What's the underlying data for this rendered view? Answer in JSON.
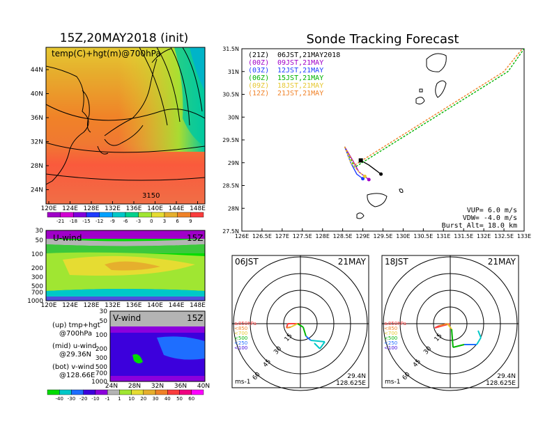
{
  "left_title": "15Z,20MAY2018 (init)",
  "right_title": "Sonde Tracking Forecast",
  "top_map": {
    "label": "temp(C)+hgt(m)@700hPa",
    "contour_label": "3150",
    "lat_ticks": [
      "44N",
      "40N",
      "36N",
      "32N",
      "28N",
      "24N"
    ],
    "lon_ticks": [
      "120E",
      "124E",
      "128E",
      "132E",
      "136E",
      "140E",
      "144E",
      "148E"
    ],
    "colorbar_labels": [
      "-21",
      "-18",
      "-15",
      "-12",
      "-9",
      "-6",
      "-3",
      "0",
      "3",
      "6",
      "9"
    ],
    "colorbar_colors": [
      "#a000c8",
      "#d200d2",
      "#8200dc",
      "#1e3cff",
      "#00a0ff",
      "#00c8c8",
      "#00d28c",
      "#a0e632",
      "#e6dc32",
      "#e6af2d",
      "#f08228",
      "#fa3c3c"
    ]
  },
  "uwind": {
    "label": "U-wind",
    "time": "15Z",
    "p_ticks": [
      "30",
      "50",
      "100",
      "200",
      "300",
      "500",
      "700",
      "1000"
    ],
    "lon_ticks": [
      "120E",
      "124E",
      "128E",
      "132E",
      "136E",
      "140E",
      "144E",
      "148E"
    ]
  },
  "vwind": {
    "label": "V-wind",
    "time": "15Z",
    "p_ticks": [
      "30",
      "50",
      "100",
      "200",
      "300",
      "500",
      "700",
      "1000"
    ],
    "lat_ticks": [
      "24N",
      "28N",
      "32N",
      "36N",
      "40N"
    ],
    "colorbar_labels": [
      "-40",
      "-30",
      "-20",
      "-10",
      "-1",
      "1",
      "10",
      "20",
      "30",
      "40",
      "50",
      "60"
    ],
    "colorbar_colors": [
      "#00dc00",
      "#00c8c8",
      "#1e6eff",
      "#3c00dc",
      "#8c00dc",
      "#b4b4b4",
      "#a0e632",
      "#e6dc32",
      "#e6af2d",
      "#f08228",
      "#fa3c3c",
      "#f00082",
      "#ff00ff"
    ]
  },
  "side_legend": {
    "up_line1": "(up) tmp+hgt",
    "up_line2": "@700hPa",
    "mid_line1": "(mid) u-wind",
    "mid_line2": "@29.36N",
    "bot_line1": "(bot) v-wind",
    "bot_line2": "@128.66E"
  },
  "track_map": {
    "lat_ticks": [
      "31.5N",
      "31N",
      "30.5N",
      "30N",
      "29.5N",
      "29N",
      "28.5N",
      "28N",
      "27.5N"
    ],
    "lon_ticks": [
      "126E",
      "126.5E",
      "127E",
      "127.5E",
      "128E",
      "128.5E",
      "129E",
      "129.5E",
      "130E",
      "130.5E",
      "131E",
      "131.5E",
      "132E",
      "132.5E",
      "133E"
    ],
    "legend": [
      {
        "tag": "(21Z)",
        "text": "06JST,21MAY2018",
        "color": "#000000"
      },
      {
        "tag": "(00Z)",
        "text": "09JST,21MAY",
        "color": "#a000c8"
      },
      {
        "tag": "(03Z)",
        "text": "12JST,21MAY",
        "color": "#1e3cff"
      },
      {
        "tag": "(06Z)",
        "text": "15JST,21MAY",
        "color": "#00b400"
      },
      {
        "tag": "(09Z)",
        "text": "18JST,21MAY",
        "color": "#e6c832"
      },
      {
        "tag": "(12Z)",
        "text": "21JST,21MAY",
        "color": "#f08228"
      }
    ],
    "vup": "VUP= 6.0 m/s",
    "vdw": "VDW= -4.0 m/s",
    "burst": "Burst Alt= 18.0 km"
  },
  "hodographs": [
    {
      "time": "06JST",
      "date": "21MAY",
      "lat": "29.4N",
      "lon": "128.625E",
      "unit": "ms-1",
      "ring_labels": [
        "15",
        "30",
        "45",
        "60"
      ],
      "levels": [
        "≥850hPa",
        "<850",
        "<700",
        "<500",
        "<250",
        "<100"
      ]
    },
    {
      "time": "18JST",
      "date": "21MAY",
      "lat": "29.4N",
      "lon": "128.625E",
      "unit": "ms-1",
      "ring_labels": [
        "15",
        "30",
        "45",
        "60"
      ],
      "levels": [
        "≥850hPa",
        "<850",
        "<700",
        "<500",
        "<250",
        "<100"
      ]
    }
  ],
  "chart_data": {
    "type": "line",
    "title": "Sonde Tracking Forecast",
    "xlim": [
      126,
      133
    ],
    "ylim": [
      27.5,
      31.5
    ],
    "series": [
      {
        "name": "06JST,21MAY2018",
        "lon": [
          128.95,
          129.15,
          129.3,
          129.45
        ],
        "lat": [
          29.05,
          28.95,
          28.85,
          28.75
        ]
      },
      {
        "name": "09JST,21MAY",
        "lon": [
          128.55,
          128.75,
          128.9,
          129.15
        ],
        "lat": [
          29.35,
          29.05,
          28.8,
          28.63
        ]
      },
      {
        "name": "12JST,21MAY",
        "lon": [
          128.55,
          128.7,
          128.85,
          129.0
        ],
        "lat": [
          29.35,
          29.0,
          28.75,
          28.65
        ]
      },
      {
        "name": "15JST,21MAY",
        "lon": [
          128.55,
          128.8,
          132.6,
          133.0
        ],
        "lat": [
          29.35,
          28.9,
          31.0,
          31.5
        ]
      },
      {
        "name": "18JST,21MAY",
        "lon": [
          128.55,
          128.7,
          128.9,
          129.05
        ],
        "lat": [
          29.35,
          29.0,
          28.8,
          28.7
        ]
      },
      {
        "name": "21JST,21MAY",
        "lon": [
          128.55,
          128.8,
          132.5,
          133.0
        ],
        "lat": [
          29.35,
          28.95,
          31.0,
          31.55
        ]
      }
    ]
  }
}
